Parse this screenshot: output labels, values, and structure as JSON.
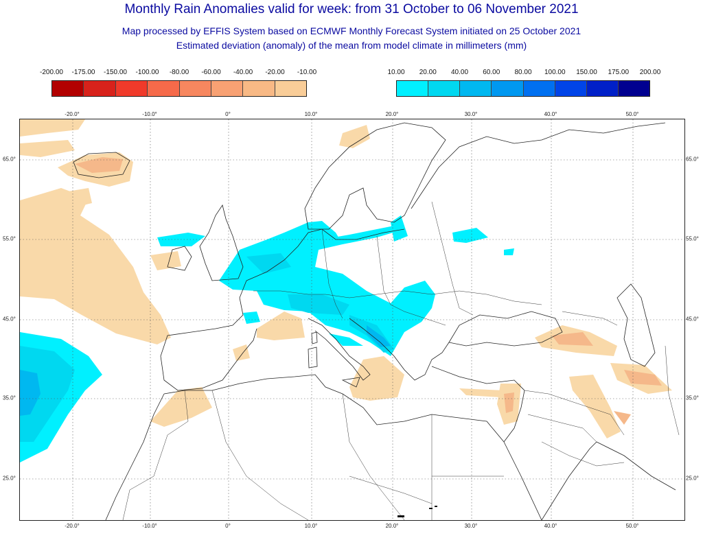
{
  "header": {
    "title": "Monthly Rain Anomalies valid for week: from 31 October to 06 November 2021",
    "subtitle1": "Map processed by EFFIS System based on ECMWF Monthly Forecast System initiated on 25 October 2021",
    "subtitle2": "Estimated deviation (anomaly) of the mean from model climate in millimeters (mm)"
  },
  "legend_negative": {
    "labels": [
      "-200.00",
      "-175.00",
      "-150.00",
      "-100.00",
      "-80.00",
      "-60.00",
      "-40.00",
      "-20.00",
      "-10.00"
    ],
    "colors": [
      "#b20000",
      "#d8221b",
      "#f03a2a",
      "#f66a4a",
      "#f7875f",
      "#f8a173",
      "#f8b985",
      "#f9cd98"
    ]
  },
  "legend_positive": {
    "labels": [
      "10.00",
      "20.00",
      "40.00",
      "60.00",
      "80.00",
      "100.00",
      "150.00",
      "175.00",
      "200.00"
    ],
    "colors": [
      "#00f0ff",
      "#00d8f0",
      "#00b8f0",
      "#0098f0",
      "#0070f0",
      "#0044e8",
      "#0020c8",
      "#000090"
    ]
  },
  "map": {
    "lon_ticks": [
      "-20.0°",
      "-10.0°",
      "0°",
      "10.0°",
      "20.0°",
      "30.0°",
      "40.0°",
      "50.0°"
    ],
    "lat_ticks": [
      "65.0°",
      "55.0°",
      "45.0°",
      "35.0°",
      "25.0°"
    ],
    "colors": {
      "dry_light": "#f9d9a9",
      "dry_medium": "#f5b88a",
      "wet_light": "#00f0ff",
      "wet_medium": "#00d8f0",
      "wet_strong": "#00b8f0",
      "border": "#222222",
      "grid": "#555555"
    }
  }
}
